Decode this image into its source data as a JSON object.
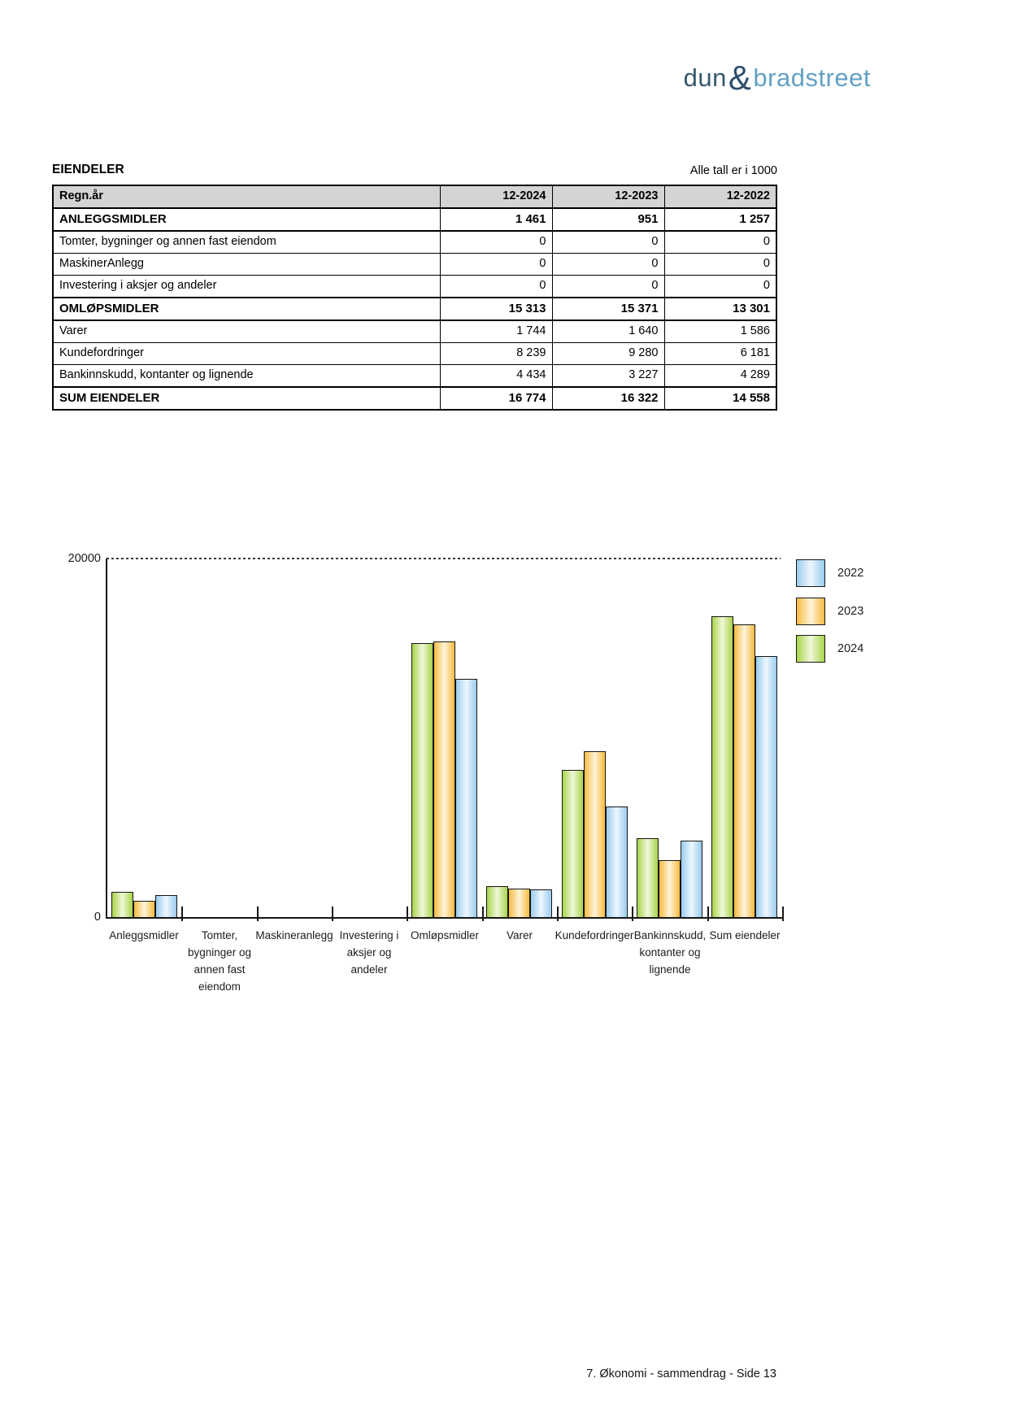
{
  "logo": {
    "part1": "dun",
    "ampersand": "&",
    "part2": "bradstreet"
  },
  "header": {
    "title": "EIENDELER",
    "units_note": "Alle tall er i 1000"
  },
  "table": {
    "columns": [
      "Regn.år",
      "12-2024",
      "12-2023",
      "12-2022"
    ],
    "rows": [
      {
        "label": "ANLEGGSMIDLER",
        "values": [
          "1 461",
          "951",
          "1 257"
        ],
        "bold": true
      },
      {
        "label": "Tomter, bygninger og annen fast eiendom",
        "values": [
          "0",
          "0",
          "0"
        ],
        "bold": false
      },
      {
        "label": "MaskinerAnlegg",
        "values": [
          "0",
          "0",
          "0"
        ],
        "bold": false
      },
      {
        "label": "Investering i aksjer og andeler",
        "values": [
          "0",
          "0",
          "0"
        ],
        "bold": false
      },
      {
        "label": "OMLØPSMIDLER",
        "values": [
          "15 313",
          "15 371",
          "13 301"
        ],
        "bold": true
      },
      {
        "label": "Varer",
        "values": [
          "1 744",
          "1 640",
          "1 586"
        ],
        "bold": false
      },
      {
        "label": "Kundefordringer",
        "values": [
          "8 239",
          "9 280",
          "6 181"
        ],
        "bold": false
      },
      {
        "label": "Bankinnskudd, kontanter og lignende",
        "values": [
          "4 434",
          "3 227",
          "4 289"
        ],
        "bold": false
      },
      {
        "label": "SUM EIENDELER",
        "values": [
          "16 774",
          "16 322",
          "14 558"
        ],
        "bold": true
      }
    ]
  },
  "chart_data": {
    "type": "bar",
    "title": "",
    "xlabel": "",
    "ylabel": "",
    "ylim": [
      0,
      20000
    ],
    "ytick_labels": [
      "20000",
      "0"
    ],
    "grid": "single dashed horizontal line at 20000",
    "legend_position": "right-top",
    "categories": [
      "Anleggsmidler",
      "Tomter, bygninger og annen fast eiendom",
      "Maskineranlegg",
      "Investering i aksjer og andeler",
      "Omløpsmidler",
      "Varer",
      "Kundefordringer",
      "Bankinnskudd, kontanter og lignende",
      "Sum eiendeler"
    ],
    "category_label_lines": [
      [
        "Anleggsmidler"
      ],
      [
        "Tomter,",
        "bygninger og",
        "annen fast",
        "eiendom"
      ],
      [
        "Maskineranlegg"
      ],
      [
        "Investering i",
        "aksjer og",
        "andeler"
      ],
      [
        "Omløpsmidler"
      ],
      [
        "Varer"
      ],
      [
        "Kundefordringer"
      ],
      [
        "Bankinnskudd,",
        "kontanter og",
        "lignende"
      ],
      [
        "Sum eiendeler"
      ]
    ],
    "bar_order_left_to_right": [
      "2024",
      "2023",
      "2022"
    ],
    "series": [
      {
        "name": "2022",
        "values": [
          1257,
          0,
          0,
          0,
          13301,
          1586,
          6181,
          4289,
          14558
        ],
        "edge_color": "#9ACCEE",
        "center_color": "#EEF7FE"
      },
      {
        "name": "2023",
        "values": [
          951,
          0,
          0,
          0,
          15371,
          1640,
          9280,
          3227,
          16322
        ],
        "edge_color": "#F6BB40",
        "center_color": "#FEF4DA"
      },
      {
        "name": "2024",
        "values": [
          1461,
          0,
          0,
          0,
          15313,
          1744,
          8239,
          4434,
          16774
        ],
        "edge_color": "#A8D44B",
        "center_color": "#F0F8DA"
      }
    ]
  },
  "footer": {
    "page_label": "7. Økonomi - sammendrag - Side 13"
  }
}
